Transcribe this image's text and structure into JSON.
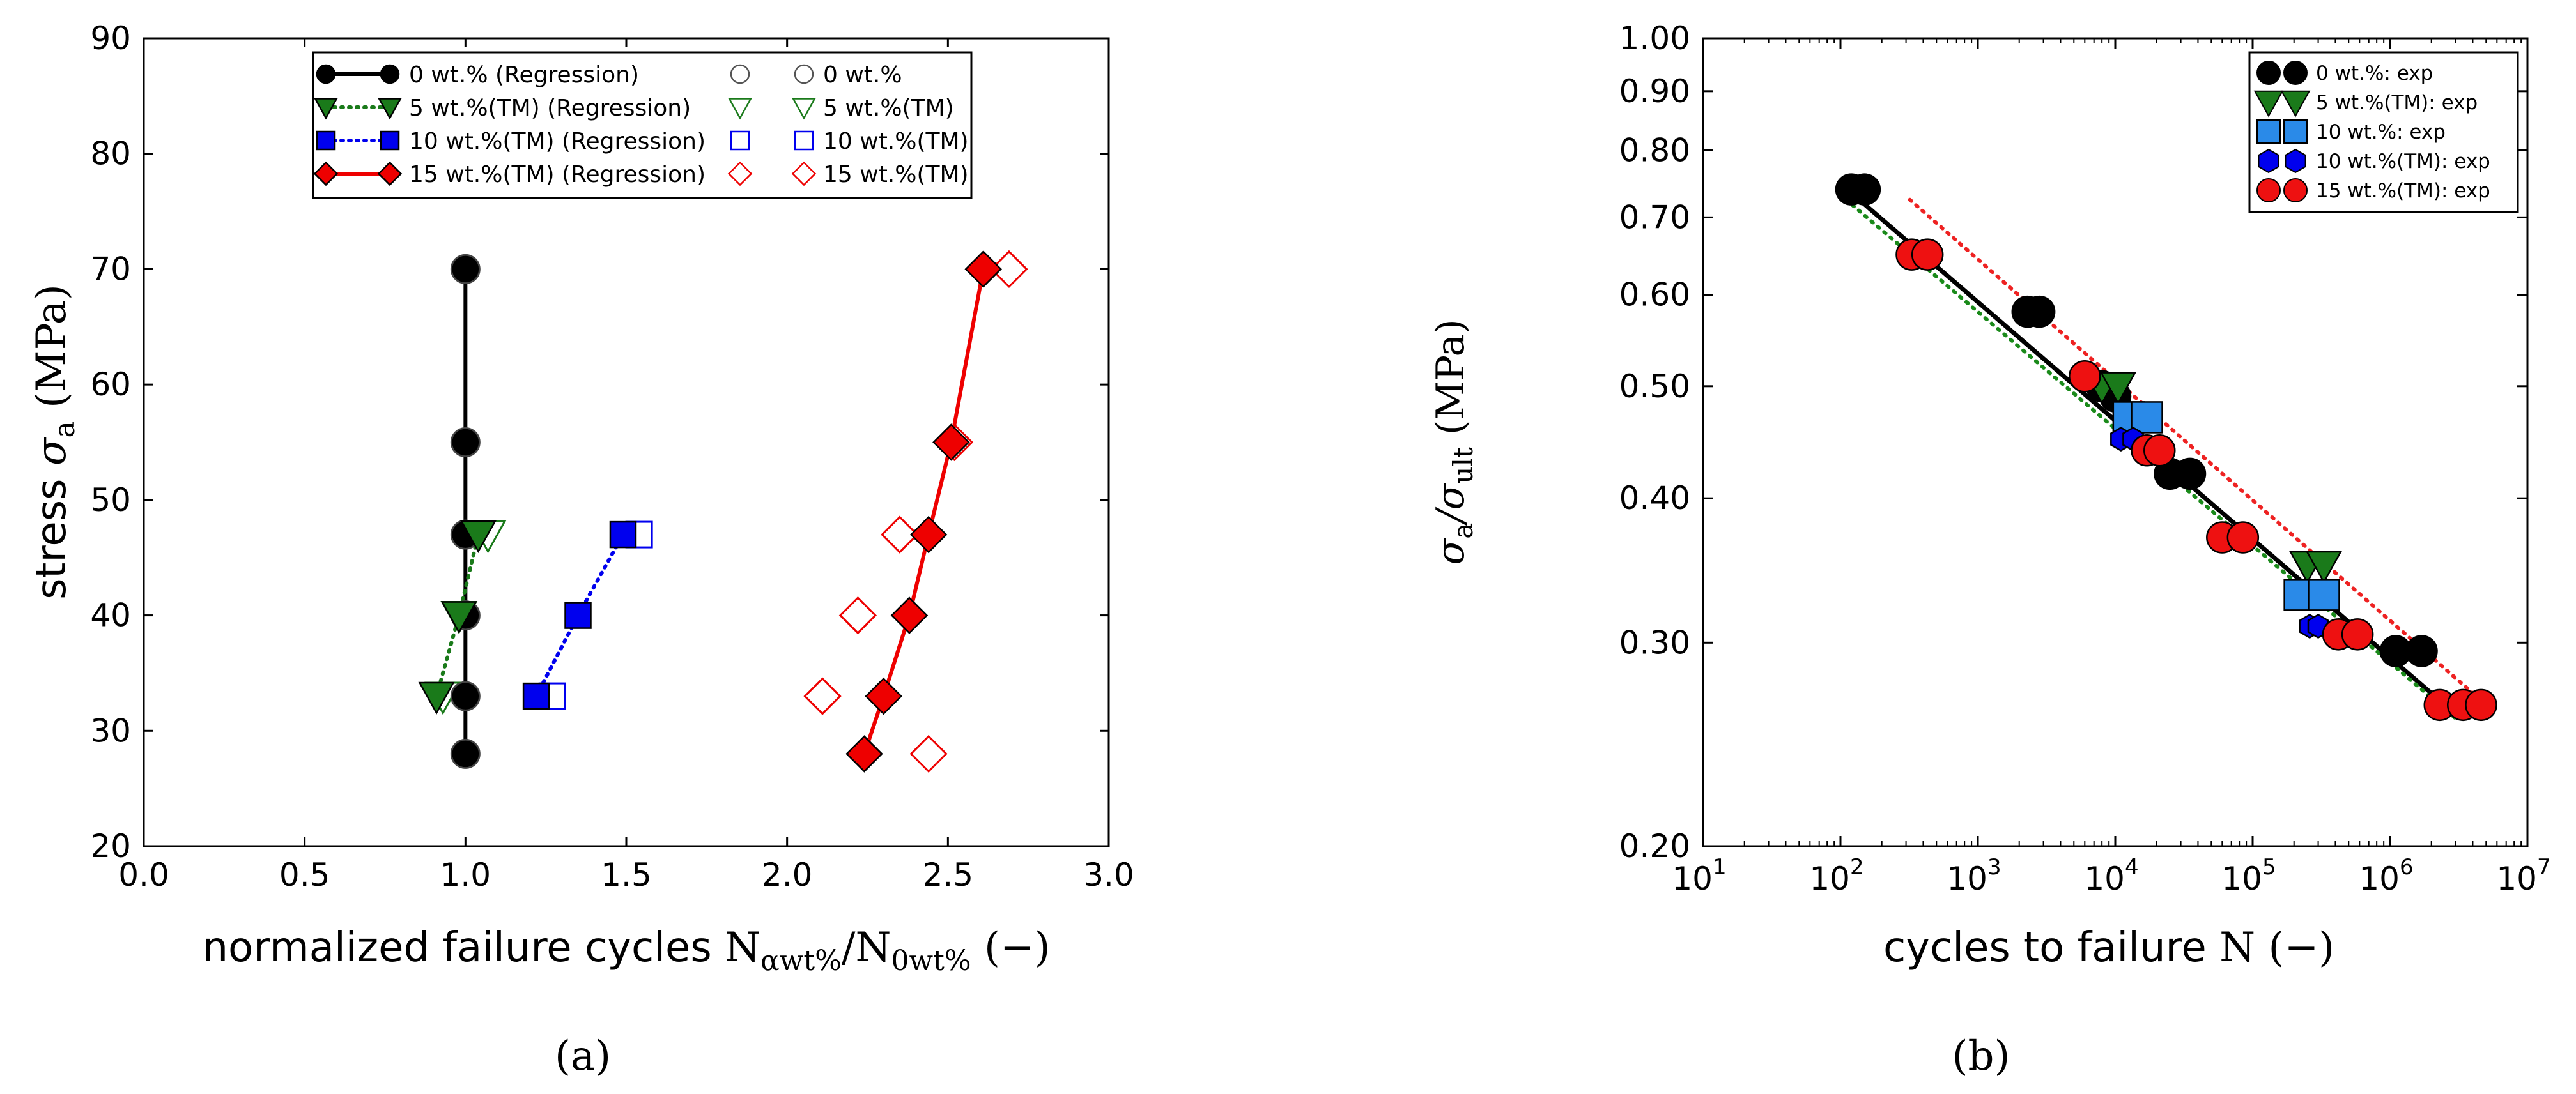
{
  "chart_data": [
    {
      "type": "scatter",
      "panel_label": "(a)",
      "xlabel_prefix": "normalized failure cycles ",
      "xlabel_math": "N",
      "xlabel_sub1": "αwt%",
      "xlabel_sep": "/N",
      "xlabel_sub2": "0wt%",
      "xlabel_suffix": " (−)",
      "ylabel_prefix": "stress ",
      "ylabel_math": "σ",
      "ylabel_sub": "a",
      "ylabel_suffix": " (MPa)",
      "xlim": [
        0.0,
        3.0
      ],
      "ylim": [
        20,
        90
      ],
      "xticks": [
        0.0,
        0.5,
        1.0,
        1.5,
        2.0,
        2.5,
        3.0
      ],
      "xtick_labels": [
        "0.0",
        "0.5",
        "1.0",
        "1.5",
        "2.0",
        "2.5",
        "3.0"
      ],
      "yticks": [
        20,
        30,
        40,
        50,
        60,
        70,
        80,
        90
      ],
      "ytick_labels": [
        "20",
        "30",
        "40",
        "50",
        "60",
        "70",
        "80",
        "90"
      ],
      "legend_position": "top",
      "series": [
        {
          "name": "0 wt.% (Regression)",
          "role": "regression",
          "marker": "circle",
          "filled": true,
          "line": "solid",
          "color": "#000000",
          "x": [
            1.0,
            1.0,
            1.0,
            1.0,
            1.0,
            1.0
          ],
          "y": [
            28,
            33,
            40,
            47,
            55,
            70
          ]
        },
        {
          "name": "5 wt.%(TM) (Regression)",
          "role": "regression",
          "marker": "triangle_down",
          "filled": true,
          "line": "dotted",
          "color": "#1a7a1a",
          "x": [
            0.91,
            0.98,
            1.04
          ],
          "y": [
            33,
            40,
            47
          ]
        },
        {
          "name": "10 wt.%(TM) (Regression)",
          "role": "regression",
          "marker": "square",
          "filled": true,
          "line": "dotted",
          "color": "#0000ee",
          "x": [
            1.22,
            1.35,
            1.49
          ],
          "y": [
            33,
            40,
            47
          ]
        },
        {
          "name": "15 wt.%(TM) (Regression)",
          "role": "regression",
          "marker": "diamond",
          "filled": true,
          "line": "solid",
          "color": "#ee0000",
          "x": [
            2.24,
            2.3,
            2.38,
            2.44,
            2.51,
            2.61
          ],
          "y": [
            28,
            33,
            40,
            47,
            55,
            70
          ]
        },
        {
          "name": "0 wt.%",
          "role": "exp",
          "marker": "circle",
          "filled": false,
          "line": "none",
          "color": "#555555",
          "x": [
            1.0,
            1.0,
            1.0,
            1.0,
            1.0,
            1.0
          ],
          "y": [
            28,
            33,
            40,
            47,
            55,
            70
          ]
        },
        {
          "name": "5 wt.%(TM)",
          "role": "exp",
          "marker": "triangle_down",
          "filled": false,
          "line": "none",
          "color": "#1a7a1a",
          "x": [
            0.93,
            0.98,
            1.07
          ],
          "y": [
            33,
            40,
            47
          ]
        },
        {
          "name": "10 wt.%(TM)",
          "role": "exp",
          "marker": "square",
          "filled": false,
          "line": "none",
          "color": "#0000ee",
          "x": [
            1.27,
            1.54
          ],
          "y": [
            33,
            47
          ]
        },
        {
          "name": "15 wt.%(TM)",
          "role": "exp",
          "marker": "diamond",
          "filled": false,
          "line": "none",
          "color": "#ee0000",
          "x": [
            2.44,
            2.11,
            2.22,
            2.35,
            2.52,
            2.69
          ],
          "y": [
            28,
            33,
            40,
            47,
            55,
            70
          ]
        }
      ]
    },
    {
      "type": "scatter",
      "panel_label": "(b)",
      "xscale": "log",
      "yscale": "log",
      "xlabel_prefix": "cycles to failure ",
      "xlabel_math": "N",
      "xlabel_suffix": " (−)",
      "ylabel_math1": "σ",
      "ylabel_sub1": "a",
      "ylabel_sep": "/σ",
      "ylabel_sub2": "ult",
      "ylabel_suffix": " (MPa)",
      "xlim": [
        10,
        10000000
      ],
      "ylim": [
        0.2,
        1.0
      ],
      "xticks": [
        10,
        100,
        1000,
        10000,
        100000,
        1000000,
        10000000
      ],
      "xtick_base": "10",
      "xtick_exponents": [
        "1",
        "2",
        "3",
        "4",
        "5",
        "6",
        "7"
      ],
      "yticks": [
        0.2,
        0.3,
        0.4,
        0.5,
        0.6,
        0.7,
        0.8,
        0.9,
        1.0
      ],
      "ytick_labels": [
        "0.20",
        "0.30",
        "0.40",
        "0.50",
        "0.60",
        "0.70",
        "0.80",
        "0.90",
        "1.00"
      ],
      "legend_position": "top-right",
      "regression_lines": [
        {
          "name": "0 wt.% fit",
          "color": "#000000",
          "style": "solid",
          "x": [
            120,
            2800000
          ],
          "y": [
            0.735,
            0.262
          ]
        },
        {
          "name": "5 wt.%(TM) fit",
          "color": "#1a8a1a",
          "style": "dotted",
          "x": [
            110,
            3000000
          ],
          "y": [
            0.725,
            0.258
          ]
        },
        {
          "name": "15 wt.%(TM) fit",
          "color": "#ee2222",
          "style": "dotted",
          "x": [
            320,
            4500000
          ],
          "y": [
            0.725,
            0.268
          ]
        }
      ],
      "series": [
        {
          "name": "0 wt.%: exp",
          "marker": "circle",
          "color": "#000000",
          "x": [
            120,
            150,
            2300,
            2800,
            8000,
            10000,
            25000,
            35000,
            1100000,
            1700000
          ],
          "y": [
            0.74,
            0.74,
            0.58,
            0.58,
            0.5,
            0.49,
            0.42,
            0.42,
            0.295,
            0.295
          ]
        },
        {
          "name": "5 wt.%(TM): exp",
          "marker": "triangle_down",
          "color": "#1a7a1a",
          "x": [
            8000,
            10500,
            250000,
            330000
          ],
          "y": [
            0.5,
            0.5,
            0.35,
            0.35
          ]
        },
        {
          "name": "10 wt.%: exp",
          "marker": "square",
          "color": "#2a8ae8",
          "x": [
            12500,
            17000,
            220000,
            330000
          ],
          "y": [
            0.47,
            0.47,
            0.33,
            0.33
          ]
        },
        {
          "name": "10 wt.%(TM): exp",
          "marker": "hexagon",
          "color": "#0000ee",
          "x": [
            11000,
            13500,
            260000,
            300000
          ],
          "y": [
            0.45,
            0.45,
            0.31,
            0.31
          ]
        },
        {
          "name": "15 wt.%(TM): exp",
          "marker": "circle",
          "color": "#ee1111",
          "x": [
            330,
            430,
            6000,
            17000,
            21000,
            60000,
            85000,
            420000,
            580000,
            2300000,
            3400000,
            4600000
          ],
          "y": [
            0.65,
            0.65,
            0.51,
            0.44,
            0.44,
            0.37,
            0.37,
            0.305,
            0.305,
            0.265,
            0.265,
            0.265
          ]
        }
      ]
    }
  ]
}
